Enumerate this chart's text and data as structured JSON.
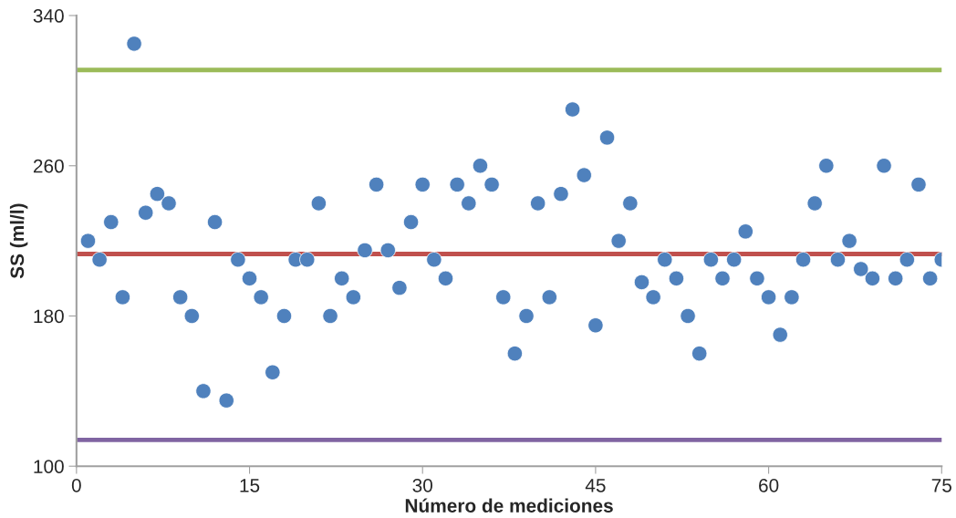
{
  "chart_data": {
    "type": "scatter",
    "xlabel": "Número de mediciones",
    "ylabel": "SS (ml/l)",
    "x": [
      1,
      2,
      3,
      4,
      5,
      6,
      7,
      8,
      9,
      10,
      11,
      12,
      13,
      14,
      15,
      16,
      17,
      18,
      19,
      20,
      21,
      22,
      23,
      24,
      25,
      26,
      27,
      28,
      29,
      30,
      31,
      32,
      33,
      34,
      35,
      36,
      37,
      38,
      39,
      40,
      41,
      42,
      43,
      44,
      45,
      46,
      47,
      48,
      49,
      50,
      51,
      52,
      53,
      54,
      55,
      56,
      57,
      58,
      59,
      60,
      61,
      62,
      63,
      64,
      65,
      66,
      67,
      68,
      69,
      70,
      71,
      72,
      73,
      74,
      75
    ],
    "series": [
      {
        "color": "#4f81bd",
        "values": [
          220,
          210,
          230,
          190,
          325,
          235,
          245,
          240,
          190,
          180,
          140,
          230,
          135,
          210,
          200,
          190,
          150,
          180,
          210,
          210,
          240,
          180,
          200,
          190,
          215,
          250,
          215,
          195,
          230,
          250,
          210,
          200,
          250,
          240,
          260,
          250,
          190,
          160,
          180,
          240,
          190,
          245,
          290,
          255,
          175,
          275,
          220,
          240,
          198,
          190,
          210,
          200,
          180,
          160,
          210,
          200,
          210,
          225,
          200,
          190,
          170,
          190,
          210,
          240,
          260,
          210,
          220,
          205,
          200,
          260,
          200,
          210,
          250,
          200,
          210
        ]
      }
    ],
    "marker": "circle",
    "ref_lines": [
      {
        "axis": "y",
        "value": 311,
        "color": "#9bbb59"
      },
      {
        "axis": "y",
        "value": 213,
        "color": "#c0504d"
      },
      {
        "axis": "y",
        "value": 114,
        "color": "#8064a2"
      }
    ],
    "xlim": [
      0,
      75
    ],
    "ylim": [
      100,
      340
    ],
    "xticks": [
      0,
      15,
      30,
      45,
      60,
      75
    ],
    "yticks": [
      100,
      180,
      260,
      340
    ],
    "grid": false,
    "legend": false
  }
}
